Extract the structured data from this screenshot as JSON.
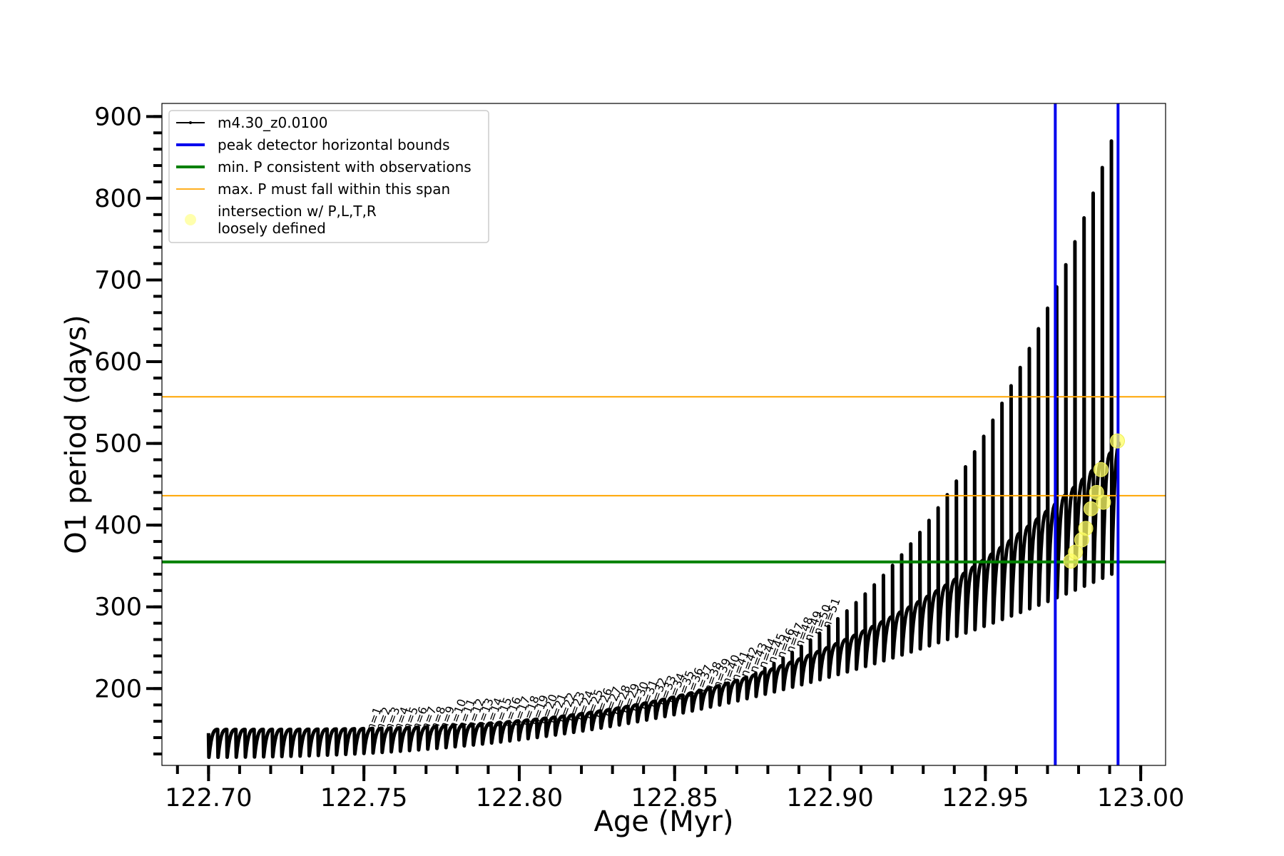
{
  "chart_data": {
    "type": "scatter",
    "xlabel": "Age (Myr)",
    "ylabel": "O1 period (days)",
    "xlim": [
      122.685,
      123.008
    ],
    "ylim": [
      106,
      916
    ],
    "x_major_ticks": [
      122.7,
      122.75,
      122.8,
      122.85,
      122.9,
      122.95,
      123.0
    ],
    "x_tick_labels": [
      "122.70",
      "122.75",
      "122.80",
      "122.85",
      "122.90",
      "122.95",
      "123.00"
    ],
    "x_minor_step": 0.01,
    "y_major_ticks": [
      200,
      300,
      400,
      500,
      600,
      700,
      800,
      900
    ],
    "y_tick_labels": [
      "200",
      "300",
      "400",
      "500",
      "600",
      "700",
      "800",
      "900"
    ],
    "y_minor_step": 20,
    "grid": false,
    "legend": {
      "position": "top-left",
      "entries": [
        {
          "label": "m4.30_z0.0100",
          "style": "black-line-dot",
          "color": "#000000"
        },
        {
          "label": "peak detector horizontal bounds",
          "style": "line",
          "color": "#0000ee"
        },
        {
          "label": "min. P consistent with observations",
          "style": "line",
          "color": "#008000"
        },
        {
          "label": "max. P must fall within this span",
          "style": "thin-line",
          "color": "#ffa500"
        },
        {
          "label": "intersection w/ P,L,T,R",
          "label2": "loosely defined",
          "style": "marker",
          "color": "#ffff99"
        }
      ]
    },
    "vertical_lines": [
      {
        "x": 122.9725,
        "color": "#0000ee",
        "role": "peak detector horizontal bounds"
      },
      {
        "x": 122.9927,
        "color": "#0000ee",
        "role": "peak detector horizontal bounds"
      }
    ],
    "horizontal_lines": [
      {
        "y": 355,
        "color": "#008000",
        "role": "min. P consistent with observations"
      },
      {
        "y": 436,
        "color": "#ffa500",
        "role": "max. P span lower"
      },
      {
        "y": 557,
        "color": "#ffa500",
        "role": "max. P span upper"
      }
    ],
    "pulse_labels": [
      "n=1",
      "n=2",
      "n=3",
      "n=4",
      "n=5",
      "n=6",
      "n=7",
      "n=8",
      "n=9",
      "n=10",
      "n=11",
      "n=12",
      "n=13",
      "n=14",
      "n=15",
      "n=16",
      "n=17",
      "n=18",
      "n=19",
      "n=20",
      "n=21",
      "n=22",
      "n=23",
      "n=24",
      "n=25",
      "n=26",
      "n=27",
      "n=28",
      "n=29",
      "n=30",
      "n=31",
      "n=32",
      "n=33",
      "n=34",
      "n=35",
      "n=36",
      "n=37",
      "n=38",
      "n=39",
      "n=40",
      "n=41",
      "n=42",
      "n=43",
      "n=44",
      "n=45",
      "n=46",
      "n=47",
      "n=48",
      "n=49",
      "n=50",
      "n=51"
    ],
    "series": [
      {
        "name": "m4.30_z0.0100",
        "color": "#000000",
        "x_start": 122.7,
        "x_end": 122.9935,
        "n_pulses": 100,
        "trough_start": 116,
        "trough_end": 340,
        "plateau_start": 150,
        "plateau_end": 500,
        "peak_start": 142,
        "peak_end": 870
      }
    ],
    "intersection_points": [
      {
        "x": 122.9775,
        "y": 356
      },
      {
        "x": 122.979,
        "y": 367
      },
      {
        "x": 122.981,
        "y": 382
      },
      {
        "x": 122.9823,
        "y": 396
      },
      {
        "x": 122.984,
        "y": 420
      },
      {
        "x": 122.9858,
        "y": 440
      },
      {
        "x": 122.9872,
        "y": 468
      },
      {
        "x": 122.988,
        "y": 428
      },
      {
        "x": 122.9925,
        "y": 503
      }
    ]
  }
}
